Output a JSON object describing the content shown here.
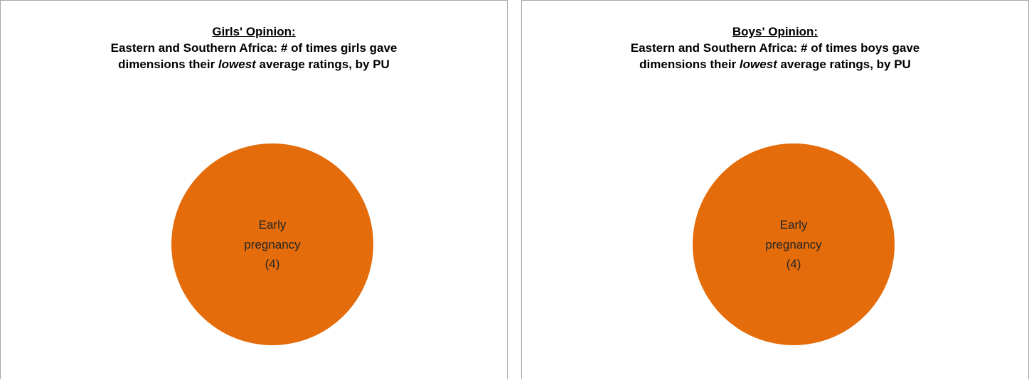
{
  "chart_data": [
    {
      "type": "pie",
      "heading": "Girls' Opinion:",
      "title_line1": "Eastern and Southern Africa: # of times girls gave",
      "title_line2_pre": "dimensions their ",
      "title_line2_em": "lowest",
      "title_line2_post": " average ratings, by PU",
      "slices": [
        {
          "label_line1": "Early",
          "label_line2": "pregnancy",
          "value_label": "(4)",
          "value": 4,
          "color": "#E46C0A"
        }
      ]
    },
    {
      "type": "pie",
      "heading": "Boys' Opinion:",
      "title_line1": "Eastern and Southern Africa: # of times boys gave",
      "title_line2_pre": "dimensions their ",
      "title_line2_em": "lowest",
      "title_line2_post": " average ratings, by PU",
      "slices": [
        {
          "label_line1": "Early",
          "label_line2": "pregnancy",
          "value_label": "(4)",
          "value": 4,
          "color": "#E46C0A"
        }
      ]
    }
  ]
}
